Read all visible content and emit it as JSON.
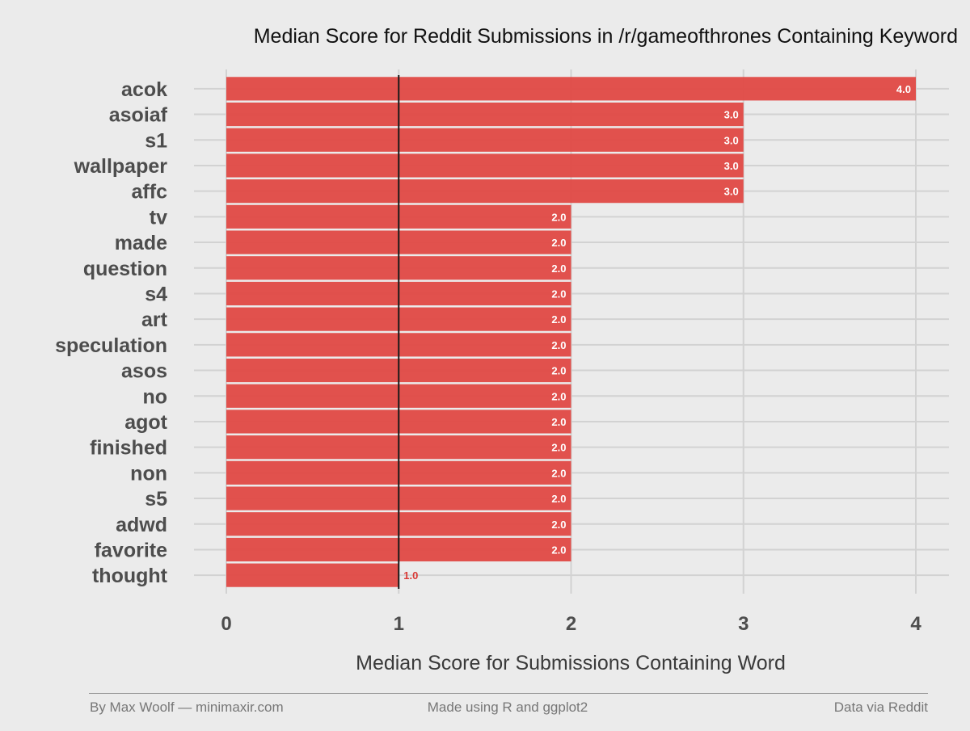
{
  "chart_data": {
    "type": "bar",
    "orientation": "horizontal",
    "title": "Median Score for Reddit Submissions in /r/gameofthrones Containing Keyword",
    "xlabel": "Median Score for Submissions Containing Word",
    "ylabel": "",
    "xlim": [
      0,
      4
    ],
    "xticks": [
      0,
      1,
      2,
      3,
      4
    ],
    "reference_line": 1,
    "grid": true,
    "categories": [
      "acok",
      "asoiaf",
      "s1",
      "wallpaper",
      "affc",
      "tv",
      "made",
      "question",
      "s4",
      "art",
      "speculation",
      "asos",
      "no",
      "agot",
      "finished",
      "non",
      "s5",
      "adwd",
      "favorite",
      "thought"
    ],
    "values": [
      4,
      3,
      3,
      3,
      3,
      2,
      2,
      2,
      2,
      2,
      2,
      2,
      2,
      2,
      2,
      2,
      2,
      2,
      2,
      1
    ],
    "value_labels": [
      "4.0",
      "3.0",
      "3.0",
      "3.0",
      "3.0",
      "2.0",
      "2.0",
      "2.0",
      "2.0",
      "2.0",
      "2.0",
      "2.0",
      "2.0",
      "2.0",
      "2.0",
      "2.0",
      "2.0",
      "2.0",
      "2.0",
      "1.0"
    ],
    "bar_color": "#e04945",
    "background_color": "#ebebeb"
  },
  "footer": {
    "left": "By Max Woolf — minimaxir.com",
    "center": "Made using R and ggplot2",
    "right": "Data via Reddit"
  }
}
